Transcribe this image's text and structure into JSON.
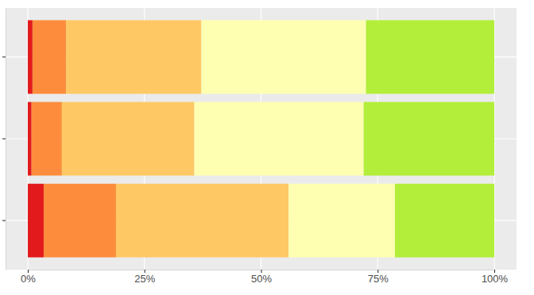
{
  "chart_data": {
    "type": "bar",
    "orientation": "horizontal",
    "stacked": true,
    "categories": [
      null,
      null,
      null
    ],
    "series": [
      {
        "color": "#E31A1C",
        "values": [
          1.0,
          0.8,
          3.4
        ]
      },
      {
        "color": "#FD8D3C",
        "values": [
          7.2,
          6.5,
          15.5
        ]
      },
      {
        "color": "#FEC965",
        "values": [
          29.0,
          28.4,
          37.0
        ]
      },
      {
        "color": "#FFFFB2",
        "values": [
          35.3,
          36.3,
          22.8
        ]
      },
      {
        "color": "#B3EE3A",
        "values": [
          27.5,
          28.0,
          21.3
        ]
      }
    ],
    "xlim": [
      0,
      100
    ],
    "xticks": [
      {
        "value": 0,
        "label": "0%"
      },
      {
        "value": 25,
        "label": "25%"
      },
      {
        "value": 50,
        "label": "50%"
      },
      {
        "value": 75,
        "label": "75%"
      },
      {
        "value": 100,
        "label": "100%"
      }
    ],
    "grid": true
  }
}
